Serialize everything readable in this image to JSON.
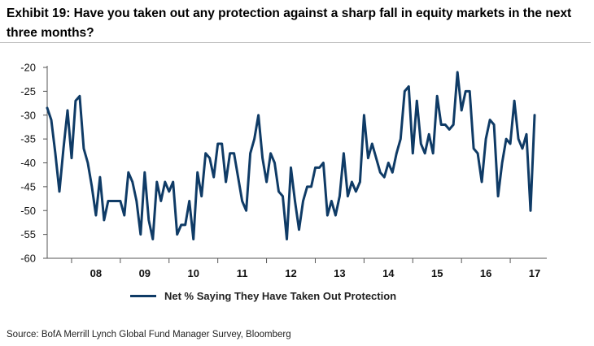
{
  "header": {
    "title": "Exhibit 19: Have you taken out any protection against a sharp fall in equity markets in the next three months?"
  },
  "legend": {
    "label": "Net % Saying They Have Taken Out Protection"
  },
  "source": "Source: BofA Merrill Lynch Global Fund Manager Survey, Bloomberg",
  "colors": {
    "series": "#0f3b66",
    "axis": "#555555"
  },
  "chart_data": {
    "type": "line",
    "title": "Have you taken out any protection against a sharp fall in equity markets in the next three months?",
    "xlabel": "",
    "ylabel": "",
    "ylim": [
      -60,
      -20
    ],
    "yticks": [
      -20,
      -25,
      -30,
      -35,
      -40,
      -45,
      -50,
      -55,
      -60
    ],
    "ytick_labels": [
      "-20",
      "-25",
      "-30",
      "-35",
      "-40",
      "-45",
      "-50",
      "-55",
      "-60"
    ],
    "xtick_labels": [
      "08",
      "09",
      "10",
      "11",
      "12",
      "13",
      "14",
      "15",
      "16",
      "17"
    ],
    "x_start_year": 2007.5,
    "x_end_year": 2017.75,
    "grid": false,
    "series": [
      {
        "name": "Net % Saying They Have Taken Out Protection",
        "points_per_year": 12,
        "values": [
          -28.5,
          -31,
          -38,
          -46,
          -37,
          -29,
          -39,
          -27,
          -26,
          -37,
          -40,
          -45,
          -51,
          -43,
          -52,
          -48,
          -48,
          -48,
          -48,
          -51,
          -42,
          -44,
          -48,
          -55,
          -42,
          -52,
          -56,
          -44,
          -48,
          -44,
          -46,
          -44,
          -55,
          -53,
          -53,
          -48,
          -56,
          -42,
          -47,
          -38,
          -39,
          -43,
          -36,
          -36,
          -44,
          -38,
          -38,
          -43,
          -48,
          -50,
          -38,
          -35,
          -30,
          -39,
          -44,
          -38,
          -40,
          -46,
          -47,
          -56,
          -41,
          -48,
          -54,
          -48,
          -45,
          -45,
          -41,
          -41,
          -40,
          -51,
          -48,
          -51,
          -47,
          -38,
          -47,
          -44,
          -46,
          -44,
          -30,
          -39,
          -36,
          -39,
          -42,
          -43,
          -40,
          -42,
          -38,
          -35,
          -25,
          -24,
          -38,
          -27,
          -36,
          -38,
          -34,
          -38,
          -26,
          -32,
          -32,
          -33,
          -32,
          -21,
          -29,
          -25,
          -25,
          -37,
          -38,
          -44,
          -35,
          -31,
          -32,
          -47,
          -40,
          -35,
          -36,
          -27,
          -35,
          -37,
          -34,
          -50,
          -30
        ]
      }
    ]
  }
}
